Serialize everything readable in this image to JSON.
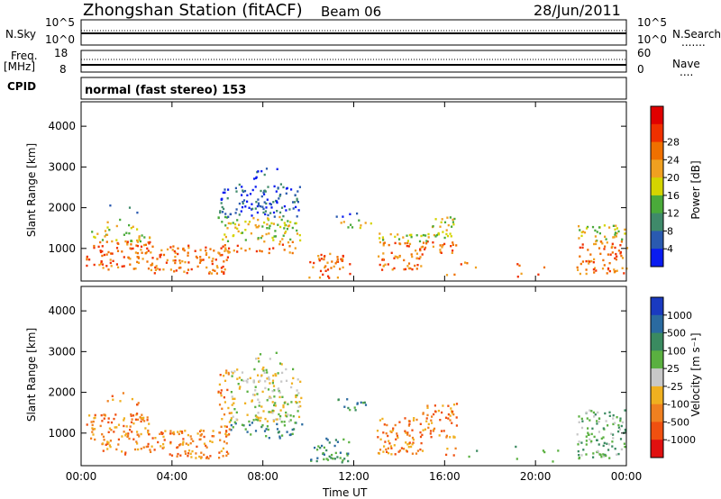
{
  "header": {
    "station": "Zhongshan Station (fitACF)",
    "beam": "Beam 06",
    "date": "28/Jun/2011"
  },
  "top_panels": {
    "nsky_label": "N.Sky",
    "nsky_ticks": [
      "10^5",
      "10^0"
    ],
    "nsearch_label": "N.Search",
    "nsearch_ticks": [
      "10^5",
      "10^0"
    ],
    "freq_label": "Freq.",
    "freq_unit": "[MHz]",
    "freq_ticks": [
      "18",
      "8"
    ],
    "nave_label": "Nave",
    "nave_ticks": [
      "60",
      "0"
    ],
    "cpid_label": "CPID",
    "cpid_text": "normal (fast stereo) 153"
  },
  "chart_data": [
    {
      "type": "heatmap",
      "panel": "power",
      "xlabel": "",
      "ylabel": "Slant Range [km]",
      "y_ticks": [
        "1000",
        "2000",
        "3000",
        "4000"
      ],
      "ylim": [
        200,
        4600
      ],
      "colorbar_label": "Power [dB]",
      "colorbar_ticks": [
        "4",
        "8",
        "12",
        "16",
        "20",
        "24",
        "28"
      ],
      "colorbar_colors": [
        "#0a1cf0",
        "#2a5ab0",
        "#3f8a6a",
        "#4aaa3a",
        "#d4d400",
        "#f0a020",
        "#f07000",
        "#f03000",
        "#e00000"
      ]
    },
    {
      "type": "heatmap",
      "panel": "velocity",
      "xlabel": "Time UT",
      "ylabel": "Slant Range [km]",
      "y_ticks": [
        "1000",
        "2000",
        "3000",
        "4000"
      ],
      "ylim": [
        200,
        4600
      ],
      "x_ticks": [
        "00:00",
        "04:00",
        "08:00",
        "12:00",
        "16:00",
        "20:00",
        "00:00"
      ],
      "xlim_hours": [
        0,
        24
      ],
      "colorbar_label": "Velocity [m s⁻¹]",
      "colorbar_ticks": [
        "1000",
        "500",
        "100",
        "25",
        "-25",
        "-100",
        "-500",
        "-1000"
      ],
      "colorbar_colors": [
        "#1a3ac0",
        "#2a6aa0",
        "#3a8a60",
        "#5ab040",
        "#c8c8c8",
        "#f0b020",
        "#f08020",
        "#f05010",
        "#e01010"
      ]
    }
  ]
}
